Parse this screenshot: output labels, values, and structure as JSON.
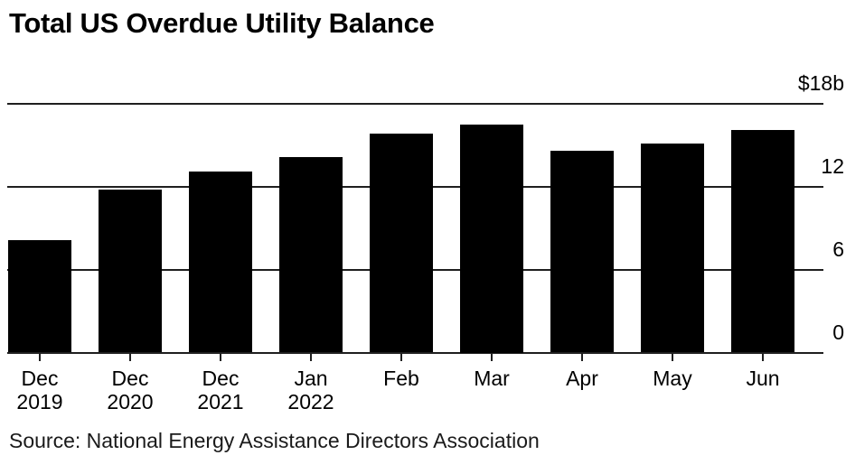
{
  "title": "Total US Overdue Utility Balance",
  "source": "Source: National Energy Assistance Directors Association",
  "colors": {
    "bar": "#000000",
    "grid": "#1f1f1f",
    "background": "#ffffff",
    "text": "#000000"
  },
  "chart_data": {
    "type": "bar",
    "title": "Total US Overdue Utility Balance",
    "categories": [
      "Dec 2019",
      "Dec 2020",
      "Dec 2021",
      "Jan 2022",
      "Feb",
      "Mar",
      "Apr",
      "May",
      "Jun"
    ],
    "x_tick_lines": [
      [
        "Dec",
        "2019"
      ],
      [
        "Dec",
        "2020"
      ],
      [
        "Dec",
        "2021"
      ],
      [
        "Jan",
        "2022"
      ],
      [
        "Feb"
      ],
      [
        "Mar"
      ],
      [
        "Apr"
      ],
      [
        "May"
      ],
      [
        "Jun"
      ]
    ],
    "values": [
      8.1,
      11.8,
      13.1,
      14.1,
      15.8,
      16.5,
      14.6,
      15.1,
      16.1
    ],
    "unit": "billions of US dollars",
    "xlabel": "",
    "ylabel": "",
    "ylim": [
      0,
      18
    ],
    "y_ticks": [
      0,
      6,
      12,
      18
    ],
    "y_tick_labels": [
      "0",
      "6",
      "12",
      "$18b"
    ],
    "value_axis_side": "right",
    "grid": "horizontal",
    "legend": "none",
    "bar_color": "#000000",
    "source": "Source: National Energy Assistance Directors Association"
  }
}
